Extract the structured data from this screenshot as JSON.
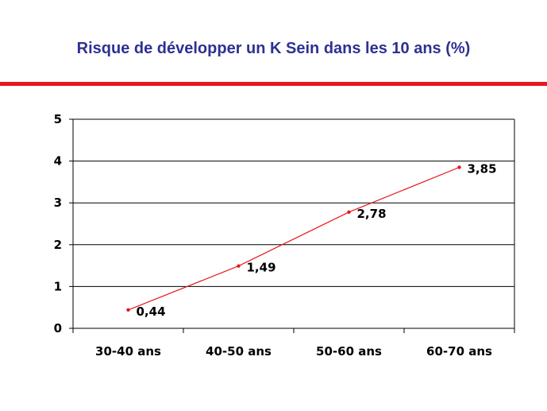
{
  "title": "Risque de développer un K Sein dans les 10 ans (%)",
  "colors": {
    "title": "#2e3192",
    "rule": "#e8161d",
    "line": "#e8161d",
    "grid": "#000000"
  },
  "chart_data": {
    "type": "line",
    "title": "",
    "xlabel": "",
    "ylabel": "",
    "categories": [
      "30-40 ans",
      "40-50 ans",
      "50-60 ans",
      "60-70 ans"
    ],
    "series": [
      {
        "values": [
          0.44,
          1.49,
          2.78,
          3.85
        ],
        "labels": [
          "0,44",
          "1,49",
          "2,78",
          "3,85"
        ]
      }
    ],
    "ylim": [
      0,
      5
    ],
    "yticks": [
      {
        "value": 0,
        "label": "0"
      },
      {
        "value": 1,
        "label": "1"
      },
      {
        "value": 2,
        "label": "2"
      },
      {
        "value": 3,
        "label": "3"
      },
      {
        "value": 4,
        "label": "4"
      },
      {
        "value": 5,
        "label": "5"
      }
    ],
    "grid": "horizontal",
    "legend": "none"
  }
}
